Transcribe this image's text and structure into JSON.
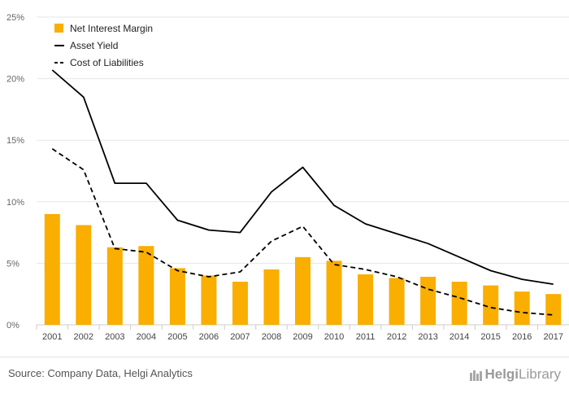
{
  "chart_data": {
    "type": "bar+line",
    "categories": [
      "2001",
      "2002",
      "2003",
      "2004",
      "2005",
      "2006",
      "2007",
      "2008",
      "2009",
      "2010",
      "2011",
      "2012",
      "2013",
      "2014",
      "2015",
      "2016",
      "2017"
    ],
    "series": [
      {
        "name": "Net Interest Margin",
        "kind": "bar",
        "color": "#F9AE00",
        "values": [
          9.0,
          8.1,
          6.3,
          6.4,
          4.6,
          4.0,
          3.5,
          4.5,
          5.5,
          5.2,
          4.1,
          3.8,
          3.9,
          3.5,
          3.2,
          2.7,
          2.5
        ]
      },
      {
        "name": "Asset Yield",
        "kind": "line",
        "style": "solid",
        "color": "#000000",
        "values": [
          20.7,
          18.5,
          11.5,
          11.5,
          8.5,
          7.7,
          7.5,
          10.8,
          12.8,
          9.7,
          8.2,
          7.4,
          6.6,
          5.5,
          4.4,
          3.7,
          3.3
        ]
      },
      {
        "name": "Cost of Liabilities",
        "kind": "line",
        "style": "dashed",
        "color": "#000000",
        "values": [
          14.3,
          12.6,
          6.2,
          5.9,
          4.4,
          3.9,
          4.3,
          6.8,
          8.0,
          4.9,
          4.5,
          3.9,
          2.9,
          2.2,
          1.4,
          1.0,
          0.8
        ]
      }
    ],
    "yticks": [
      "0%",
      "5%",
      "10%",
      "15%",
      "20%",
      "25%"
    ],
    "ylim": [
      0,
      25
    ],
    "grid": true,
    "legend_position": "top-left"
  },
  "footer": {
    "source": "Source: Company Data, Helgi Analytics",
    "logo_brand": "Helgi",
    "logo_suffix": "Library"
  }
}
